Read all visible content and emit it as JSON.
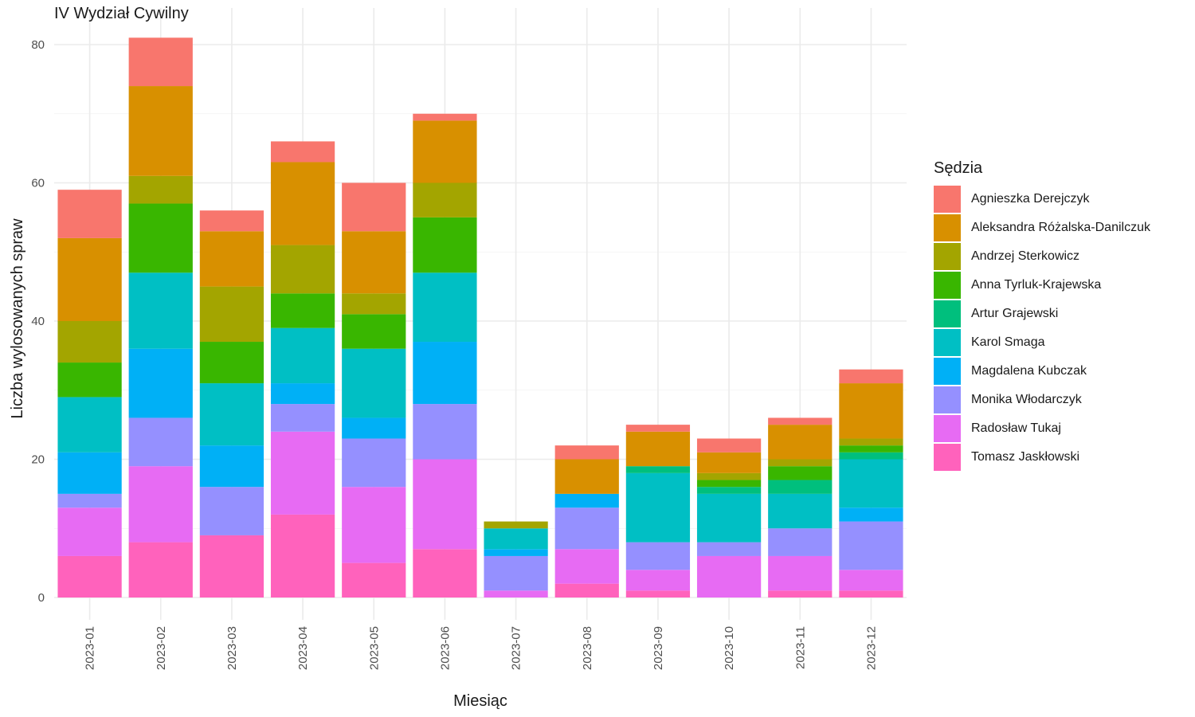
{
  "chart_data": {
    "type": "bar",
    "stacked": true,
    "title": "IV Wydział Cywilny",
    "xlabel": "Miesiąc",
    "ylabel": "Liczba wylosowanych spraw",
    "ylim": [
      0,
      83
    ],
    "yticks": [
      0,
      20,
      40,
      60,
      80
    ],
    "grid": true,
    "legend_title": "Sędzia",
    "legend_position": "right",
    "categories": [
      "2023-01",
      "2023-02",
      "2023-03",
      "2023-04",
      "2023-05",
      "2023-06",
      "2023-07",
      "2023-08",
      "2023-09",
      "2023-10",
      "2023-11",
      "2023-12"
    ],
    "series": [
      {
        "name": "Agnieszka Derejczyk",
        "color": "#F8766D",
        "values": [
          7,
          7,
          3,
          3,
          7,
          1,
          0,
          2,
          1,
          2,
          1,
          2
        ]
      },
      {
        "name": "Aleksandra Różalska-Danilczuk",
        "color": "#D89000",
        "values": [
          12,
          13,
          8,
          12,
          9,
          9,
          0,
          5,
          5,
          3,
          5,
          8
        ]
      },
      {
        "name": "Andrzej Sterkowicz",
        "color": "#A3A500",
        "values": [
          6,
          4,
          8,
          7,
          3,
          5,
          1,
          0,
          0,
          1,
          1,
          1
        ]
      },
      {
        "name": "Anna Tyrluk-Krajewska",
        "color": "#39B600",
        "values": [
          5,
          10,
          6,
          5,
          5,
          8,
          0,
          0,
          0,
          1,
          2,
          1
        ]
      },
      {
        "name": "Artur Grajewski",
        "color": "#00BF7D",
        "values": [
          0,
          0,
          0,
          0,
          0,
          0,
          0,
          0,
          1,
          1,
          2,
          1
        ]
      },
      {
        "name": "Karol Smaga",
        "color": "#00BFC4",
        "values": [
          8,
          11,
          9,
          8,
          10,
          10,
          3,
          0,
          10,
          7,
          5,
          7
        ]
      },
      {
        "name": "Magdalena Kubczak",
        "color": "#00B0F6",
        "values": [
          6,
          10,
          6,
          3,
          3,
          9,
          1,
          2,
          0,
          0,
          0,
          2
        ]
      },
      {
        "name": "Monika Włodarczyk",
        "color": "#9590FF",
        "values": [
          2,
          7,
          7,
          4,
          7,
          8,
          5,
          6,
          4,
          2,
          4,
          7
        ]
      },
      {
        "name": "Radosław Tukaj",
        "color": "#E76BF3",
        "values": [
          7,
          11,
          0,
          12,
          11,
          13,
          1,
          5,
          3,
          6,
          5,
          3
        ]
      },
      {
        "name": "Tomasz Jaskłowski",
        "color": "#FF62BC",
        "values": [
          6,
          8,
          9,
          12,
          5,
          7,
          0,
          2,
          1,
          0,
          1,
          1
        ]
      }
    ]
  }
}
